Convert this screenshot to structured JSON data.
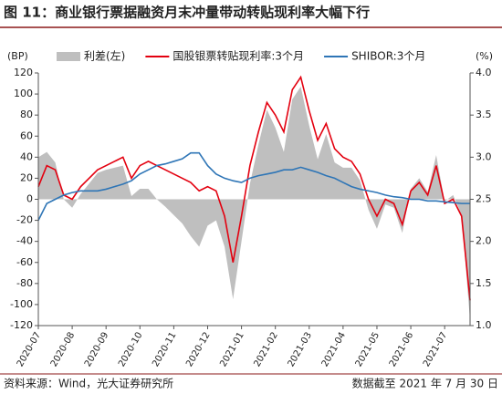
{
  "chart_data": {
    "type": "line",
    "title": "图 11：商业银行票据融资月末冲量带动转贴现利率大幅下行",
    "source": "资料来源：Wind，光大证券研究所",
    "note": "数据截至 2021 年 7 月 30 日",
    "y_label": "(BP)",
    "y2_label": "(%)",
    "categories": [
      "2020-07",
      null,
      null,
      null,
      "2020-08",
      null,
      null,
      null,
      "2020-09",
      null,
      null,
      null,
      "2020-10",
      null,
      null,
      null,
      "2020-11",
      null,
      null,
      null,
      "2020-12",
      null,
      null,
      null,
      "2021-01",
      null,
      null,
      null,
      "2021-02",
      null,
      null,
      null,
      "2021-03",
      null,
      null,
      null,
      "2021-04",
      null,
      null,
      null,
      "2021-05",
      null,
      null,
      null,
      "2021-06",
      null,
      null,
      null,
      "2021-07",
      null,
      null,
      null
    ],
    "ylim": [
      -120,
      120
    ],
    "yticks": [
      -120,
      -100,
      -80,
      -60,
      -40,
      -20,
      0,
      20,
      40,
      60,
      80,
      100,
      120
    ],
    "y2lim": [
      1.0,
      4.0
    ],
    "y2ticks": [
      {
        "value": 1.0,
        "label": "1.0"
      },
      1.5,
      {
        "value": 2.0,
        "label": "2.0"
      },
      2.5,
      {
        "value": 3.0,
        "label": "3.0"
      },
      3.5,
      {
        "value": 4.0,
        "label": "4.0"
      }
    ],
    "legend": "top",
    "series": [
      {
        "name": "利差(左)",
        "type": "area",
        "color": "#bfbfbf",
        "axis": "y",
        "values": [
          40,
          45,
          35,
          0,
          -8,
          5,
          15,
          25,
          28,
          30,
          32,
          3,
          10,
          10,
          0,
          -7,
          -15,
          -23,
          -35,
          -45,
          -25,
          -20,
          -45,
          -95,
          -40,
          15,
          52,
          85,
          68,
          45,
          95,
          107,
          70,
          38,
          62,
          35,
          30,
          30,
          18,
          -10,
          -28,
          -5,
          -8,
          -32,
          10,
          20,
          7,
          42,
          -2,
          4,
          -15,
          -115
        ]
      },
      {
        "name": "国股银票转贴现利率:3个月",
        "type": "line",
        "color": "#e3000f",
        "axis": "y2",
        "values": [
          2.65,
          2.9,
          2.85,
          2.55,
          2.5,
          2.65,
          2.75,
          2.85,
          2.9,
          2.95,
          3.0,
          2.75,
          2.9,
          2.95,
          2.9,
          2.85,
          2.8,
          2.75,
          2.7,
          2.6,
          2.65,
          2.6,
          2.3,
          1.75,
          2.3,
          2.9,
          3.3,
          3.65,
          3.5,
          3.3,
          3.8,
          3.95,
          3.55,
          3.2,
          3.4,
          3.1,
          3.0,
          2.95,
          2.8,
          2.5,
          2.3,
          2.5,
          2.45,
          2.2,
          2.6,
          2.7,
          2.55,
          2.9,
          2.45,
          2.5,
          2.3,
          1.3
        ]
      },
      {
        "name": "SHIBOR:3个月",
        "type": "line",
        "color": "#2e75b6",
        "axis": "y2",
        "values": [
          2.25,
          2.45,
          2.5,
          2.55,
          2.58,
          2.6,
          2.6,
          2.6,
          2.62,
          2.65,
          2.68,
          2.72,
          2.8,
          2.85,
          2.9,
          2.92,
          2.95,
          2.98,
          3.05,
          3.05,
          2.9,
          2.8,
          2.75,
          2.72,
          2.7,
          2.75,
          2.78,
          2.8,
          2.82,
          2.85,
          2.85,
          2.88,
          2.85,
          2.82,
          2.78,
          2.75,
          2.7,
          2.65,
          2.62,
          2.6,
          2.58,
          2.55,
          2.53,
          2.52,
          2.5,
          2.5,
          2.48,
          2.48,
          2.47,
          2.46,
          2.45,
          2.45
        ]
      }
    ]
  }
}
